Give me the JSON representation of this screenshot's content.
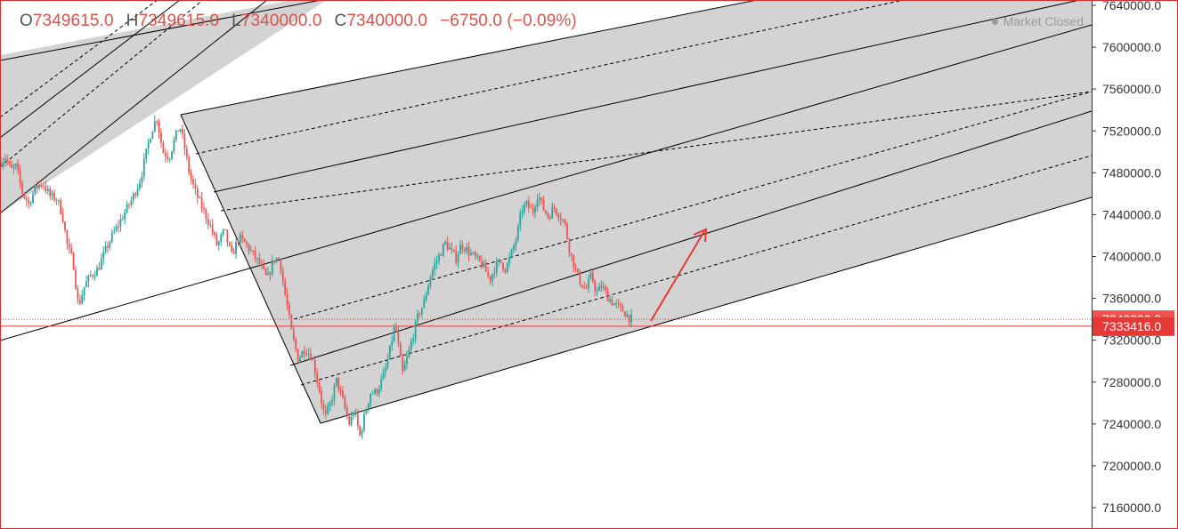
{
  "header": {
    "open_key": "O",
    "open": "7349615.0",
    "high_key": "H",
    "high": "7349615.0",
    "low_key": "L",
    "low": "7340000.0",
    "close_key": "C",
    "close": "7340000.0",
    "change": "−6750.0 (−0.09%)",
    "status": "Market Closed"
  },
  "colors": {
    "up": "#26a69a",
    "down": "#ef5350",
    "channel_fill": "#d3d3d3",
    "line": "#000000",
    "accent": "#e53935",
    "axis_text": "#333333"
  },
  "chart_data": {
    "type": "candlestick",
    "title": "",
    "xlabel": "",
    "ylabel": "",
    "ylim": [
      7140000,
      7640000
    ],
    "y_ticks": [
      "7160000.0",
      "7200000.0",
      "7240000.0",
      "7280000.0",
      "7320000.0",
      "7360000.0",
      "7400000.0",
      "7440000.0",
      "7480000.0",
      "7520000.0",
      "7560000.0",
      "7600000.0",
      "7640000.0"
    ],
    "y_tick_values": [
      7160000,
      7200000,
      7240000,
      7280000,
      7320000,
      7360000,
      7400000,
      7440000,
      7480000,
      7520000,
      7560000,
      7600000,
      7640000
    ],
    "price_labels": [
      {
        "value": 7340000,
        "text": "7340000.0"
      },
      {
        "value": 7333416,
        "text": "7333416.0"
      }
    ],
    "close_path": [
      [
        0,
        7490000
      ],
      [
        6,
        7495000
      ],
      [
        12,
        7482000
      ],
      [
        18,
        7486000
      ],
      [
        25,
        7462000
      ],
      [
        32,
        7450000
      ],
      [
        40,
        7466000
      ],
      [
        48,
        7470000
      ],
      [
        56,
        7458000
      ],
      [
        64,
        7455000
      ],
      [
        70,
        7440000
      ],
      [
        76,
        7408000
      ],
      [
        82,
        7396000
      ],
      [
        88,
        7352000
      ],
      [
        95,
        7372000
      ],
      [
        102,
        7382000
      ],
      [
        110,
        7388000
      ],
      [
        118,
        7405000
      ],
      [
        126,
        7420000
      ],
      [
        134,
        7432000
      ],
      [
        142,
        7445000
      ],
      [
        150,
        7458000
      ],
      [
        158,
        7475000
      ],
      [
        165,
        7502000
      ],
      [
        170,
        7520000
      ],
      [
        176,
        7533000
      ],
      [
        183,
        7500000
      ],
      [
        190,
        7495000
      ],
      [
        196,
        7512000
      ],
      [
        202,
        7525000
      ],
      [
        207,
        7505000
      ],
      [
        213,
        7478000
      ],
      [
        220,
        7460000
      ],
      [
        228,
        7445000
      ],
      [
        236,
        7430000
      ],
      [
        244,
        7410000
      ],
      [
        252,
        7425000
      ],
      [
        260,
        7400000
      ],
      [
        268,
        7418000
      ],
      [
        276,
        7412000
      ],
      [
        284,
        7402000
      ],
      [
        292,
        7392000
      ],
      [
        300,
        7378000
      ],
      [
        308,
        7398000
      ],
      [
        314,
        7398000
      ],
      [
        318,
        7375000
      ],
      [
        323,
        7350000
      ],
      [
        328,
        7325000
      ],
      [
        335,
        7302000
      ],
      [
        342,
        7312000
      ],
      [
        350,
        7305000
      ],
      [
        358,
        7275000
      ],
      [
        365,
        7245000
      ],
      [
        372,
        7262000
      ],
      [
        378,
        7282000
      ],
      [
        385,
        7262000
      ],
      [
        392,
        7240000
      ],
      [
        398,
        7253000
      ],
      [
        404,
        7228000
      ],
      [
        410,
        7250000
      ],
      [
        416,
        7270000
      ],
      [
        422,
        7270000
      ],
      [
        428,
        7280000
      ],
      [
        434,
        7295000
      ],
      [
        440,
        7320000
      ],
      [
        444,
        7336000
      ],
      [
        448,
        7310000
      ],
      [
        452,
        7288000
      ],
      [
        458,
        7305000
      ],
      [
        464,
        7325000
      ],
      [
        470,
        7345000
      ],
      [
        476,
        7355000
      ],
      [
        482,
        7378000
      ],
      [
        488,
        7392000
      ],
      [
        494,
        7402000
      ],
      [
        500,
        7413000
      ],
      [
        506,
        7406000
      ],
      [
        512,
        7398000
      ],
      [
        518,
        7412000
      ],
      [
        526,
        7405000
      ],
      [
        534,
        7398000
      ],
      [
        542,
        7392000
      ],
      [
        550,
        7378000
      ],
      [
        556,
        7390000
      ],
      [
        562,
        7395000
      ],
      [
        568,
        7388000
      ],
      [
        574,
        7402000
      ],
      [
        580,
        7418000
      ],
      [
        586,
        7445000
      ],
      [
        592,
        7450000
      ],
      [
        598,
        7442000
      ],
      [
        604,
        7460000
      ],
      [
        610,
        7446000
      ],
      [
        616,
        7438000
      ],
      [
        622,
        7447000
      ],
      [
        628,
        7440000
      ],
      [
        634,
        7432000
      ],
      [
        640,
        7405000
      ],
      [
        646,
        7388000
      ],
      [
        652,
        7375000
      ],
      [
        658,
        7368000
      ],
      [
        664,
        7382000
      ],
      [
        670,
        7365000
      ],
      [
        676,
        7372000
      ],
      [
        682,
        7362000
      ],
      [
        688,
        7356000
      ],
      [
        694,
        7352000
      ],
      [
        700,
        7348000
      ],
      [
        706,
        7342000
      ],
      [
        710,
        7340000
      ]
    ],
    "annotations": [
      {
        "type": "pitchfork",
        "description": "parallel channel with dashed median sub-lines"
      },
      {
        "type": "arrow",
        "direction": "up",
        "color": "#e53935"
      }
    ]
  }
}
